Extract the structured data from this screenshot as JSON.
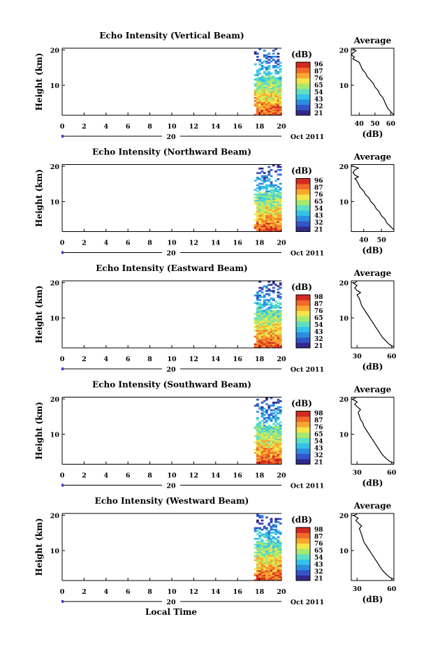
{
  "chart_data": [
    {
      "type": "heatmap",
      "title": "Echo Intensity (Vertical Beam)",
      "ylabel": "Height (km)",
      "x_ticks": [
        "0",
        "2",
        "4",
        "6",
        "8",
        "10",
        "12",
        "14",
        "16",
        "18",
        "20"
      ],
      "y_ticks": [
        "20",
        "10"
      ],
      "date_day": "20",
      "date_label": "Oct 2011",
      "xlim": [
        0,
        20
      ],
      "ylim": [
        1.5,
        20.5
      ],
      "data_x_range": [
        17.5,
        20.0
      ],
      "colorbar": {
        "label": "(dB)",
        "ticks": [
          "96",
          "87",
          "76",
          "65",
          "54",
          "43",
          "32",
          "21"
        ],
        "range": [
          21,
          96
        ]
      },
      "average": {
        "title": "Average",
        "xlabel": "(dB)",
        "x_ticks": [
          "40",
          "50",
          "60"
        ],
        "y_ticks": [
          "20",
          "10"
        ],
        "xlim": [
          35,
          62
        ],
        "profile": [
          [
            62,
            1.6
          ],
          [
            60,
            2.5
          ],
          [
            58,
            3.5
          ],
          [
            57,
            4.5
          ],
          [
            56,
            5.5
          ],
          [
            55,
            6.5
          ],
          [
            53,
            7.5
          ],
          [
            52,
            8.5
          ],
          [
            50,
            9.5
          ],
          [
            49,
            10.5
          ],
          [
            47,
            11.5
          ],
          [
            45,
            12.5
          ],
          [
            44,
            13.5
          ],
          [
            42,
            14.5
          ],
          [
            41,
            15.5
          ],
          [
            40,
            16.5
          ],
          [
            38,
            17.0
          ],
          [
            36,
            17.5
          ],
          [
            37,
            18.0
          ],
          [
            35,
            18.6
          ],
          [
            36,
            19.2
          ],
          [
            38,
            19.8
          ],
          [
            36,
            20.4
          ]
        ]
      }
    },
    {
      "type": "heatmap",
      "title": "Echo Intensity (Northward Beam)",
      "ylabel": "Height (km)",
      "x_ticks": [
        "0",
        "2",
        "4",
        "6",
        "8",
        "10",
        "12",
        "14",
        "16",
        "18",
        "20"
      ],
      "y_ticks": [
        "20",
        "10"
      ],
      "date_day": "20",
      "date_label": "Oct 2011",
      "xlim": [
        0,
        20
      ],
      "ylim": [
        1.5,
        20.5
      ],
      "data_x_range": [
        17.5,
        20.0
      ],
      "colorbar": {
        "label": "(dB)",
        "ticks": [
          "96",
          "87",
          "76",
          "65",
          "54",
          "43",
          "32",
          "21"
        ],
        "range": [
          21,
          96
        ]
      },
      "average": {
        "title": "Average",
        "xlabel": "(dB)",
        "x_ticks": [
          "40",
          "50"
        ],
        "y_ticks": [
          "20",
          "10"
        ],
        "xlim": [
          33,
          57
        ],
        "profile": [
          [
            57,
            2.0
          ],
          [
            55,
            3.0
          ],
          [
            53,
            4.0
          ],
          [
            52,
            5.0
          ],
          [
            50,
            6.0
          ],
          [
            49,
            7.0
          ],
          [
            47,
            8.0
          ],
          [
            46,
            9.0
          ],
          [
            44,
            10.0
          ],
          [
            43,
            11.0
          ],
          [
            41,
            12.0
          ],
          [
            40,
            13.0
          ],
          [
            38,
            14.0
          ],
          [
            37,
            15.0
          ],
          [
            36,
            16.0
          ],
          [
            35,
            16.5
          ],
          [
            37,
            17.0
          ],
          [
            35,
            17.5
          ],
          [
            34,
            18.2
          ],
          [
            35,
            19.0
          ],
          [
            37,
            19.5
          ],
          [
            33,
            20.2
          ]
        ]
      }
    },
    {
      "type": "heatmap",
      "title": "Echo Intensity (Eastward Beam)",
      "ylabel": "Height (km)",
      "x_ticks": [
        "0",
        "2",
        "4",
        "6",
        "8",
        "10",
        "12",
        "14",
        "16",
        "18",
        "20"
      ],
      "y_ticks": [
        "20",
        "10"
      ],
      "date_day": "20",
      "date_label": "Oct 2011",
      "xlim": [
        0,
        20
      ],
      "ylim": [
        1.5,
        20.5
      ],
      "data_x_range": [
        17.5,
        20.0
      ],
      "colorbar": {
        "label": "(dB)",
        "ticks": [
          "98",
          "87",
          "76",
          "65",
          "54",
          "43",
          "32",
          "21"
        ],
        "range": [
          21,
          98
        ]
      },
      "average": {
        "title": "Average",
        "xlabel": "(dB)",
        "x_ticks": [
          "30",
          "60"
        ],
        "y_ticks": [
          "20",
          "10"
        ],
        "xlim": [
          25,
          62
        ],
        "profile": [
          [
            62,
            1.8
          ],
          [
            58,
            2.5
          ],
          [
            55,
            3.5
          ],
          [
            52,
            4.5
          ],
          [
            50,
            5.5
          ],
          [
            48,
            6.5
          ],
          [
            46,
            7.5
          ],
          [
            44,
            8.5
          ],
          [
            42,
            9.5
          ],
          [
            40,
            10.5
          ],
          [
            38,
            11.5
          ],
          [
            36,
            12.5
          ],
          [
            34,
            13.5
          ],
          [
            33,
            14.5
          ],
          [
            32,
            15.5
          ],
          [
            30,
            16.5
          ],
          [
            33,
            17.2
          ],
          [
            30,
            17.8
          ],
          [
            28,
            18.5
          ],
          [
            30,
            19.2
          ],
          [
            27,
            19.8
          ],
          [
            30,
            20.3
          ]
        ]
      }
    },
    {
      "type": "heatmap",
      "title": "Echo Intensity (Southward Beam)",
      "ylabel": "Height (km)",
      "x_ticks": [
        "0",
        "2",
        "4",
        "6",
        "8",
        "10",
        "12",
        "14",
        "16",
        "18",
        "20"
      ],
      "y_ticks": [
        "20",
        "10"
      ],
      "date_day": "20",
      "date_label": "Oct 2011",
      "xlim": [
        0,
        20
      ],
      "ylim": [
        1.5,
        20.5
      ],
      "data_x_range": [
        17.5,
        20.0
      ],
      "colorbar": {
        "label": "(dB)",
        "ticks": [
          "98",
          "87",
          "76",
          "65",
          "54",
          "43",
          "32",
          "21"
        ],
        "range": [
          21,
          98
        ]
      },
      "average": {
        "title": "Average",
        "xlabel": "(dB)",
        "x_ticks": [
          "30",
          "60"
        ],
        "y_ticks": [
          "20",
          "10"
        ],
        "xlim": [
          25,
          62
        ],
        "profile": [
          [
            62,
            1.8
          ],
          [
            58,
            2.4
          ],
          [
            55,
            3.2
          ],
          [
            52,
            4.2
          ],
          [
            50,
            5.2
          ],
          [
            48,
            6.2
          ],
          [
            46,
            7.2
          ],
          [
            44,
            8.2
          ],
          [
            42,
            9.2
          ],
          [
            40,
            10.2
          ],
          [
            38,
            11.2
          ],
          [
            36,
            12.2
          ],
          [
            35,
            13.2
          ],
          [
            33,
            14.2
          ],
          [
            32,
            15.2
          ],
          [
            31,
            16.2
          ],
          [
            33,
            17.0
          ],
          [
            30,
            17.8
          ],
          [
            28,
            18.5
          ],
          [
            30,
            19.2
          ],
          [
            26,
            19.9
          ],
          [
            29,
            20.3
          ]
        ]
      }
    },
    {
      "type": "heatmap",
      "title": "Echo Intensity (Westward Beam)",
      "ylabel": "Height (km)",
      "xlabel": "Local Time",
      "x_ticks": [
        "0",
        "2",
        "4",
        "6",
        "8",
        "10",
        "12",
        "14",
        "16",
        "18",
        "20"
      ],
      "y_ticks": [
        "20",
        "10"
      ],
      "date_day": "20",
      "date_label": "Oct 2011",
      "xlim": [
        0,
        20
      ],
      "ylim": [
        1.5,
        20.5
      ],
      "data_x_range": [
        17.5,
        20.0
      ],
      "colorbar": {
        "label": "(dB)",
        "ticks": [
          "98",
          "87",
          "76",
          "65",
          "54",
          "43",
          "32",
          "21"
        ],
        "range": [
          21,
          98
        ]
      },
      "average": {
        "title": "Average",
        "xlabel": "(dB)",
        "x_ticks": [
          "30",
          "60"
        ],
        "y_ticks": [
          "20",
          "10"
        ],
        "xlim": [
          25,
          62
        ],
        "profile": [
          [
            62,
            1.8
          ],
          [
            58,
            2.5
          ],
          [
            55,
            3.4
          ],
          [
            52,
            4.4
          ],
          [
            50,
            5.4
          ],
          [
            48,
            6.4
          ],
          [
            46,
            7.4
          ],
          [
            44,
            8.4
          ],
          [
            42,
            9.4
          ],
          [
            40,
            10.4
          ],
          [
            38,
            11.4
          ],
          [
            36,
            12.4
          ],
          [
            35,
            13.4
          ],
          [
            34,
            14.4
          ],
          [
            33,
            15.4
          ],
          [
            32,
            16.2
          ],
          [
            34,
            17.0
          ],
          [
            31,
            17.8
          ],
          [
            29,
            18.5
          ],
          [
            31,
            19.2
          ],
          [
            27,
            19.9
          ],
          [
            30,
            20.3
          ]
        ]
      }
    }
  ],
  "colors": {
    "colormap": [
      "#312a8c",
      "#3355c8",
      "#2b8ee0",
      "#35c2e8",
      "#5ee0c0",
      "#a8e870",
      "#f2e64a",
      "#f8a830",
      "#f06a2a",
      "#d42a20"
    ],
    "axis": "#000000",
    "date_bar": "#3a3ad0"
  }
}
